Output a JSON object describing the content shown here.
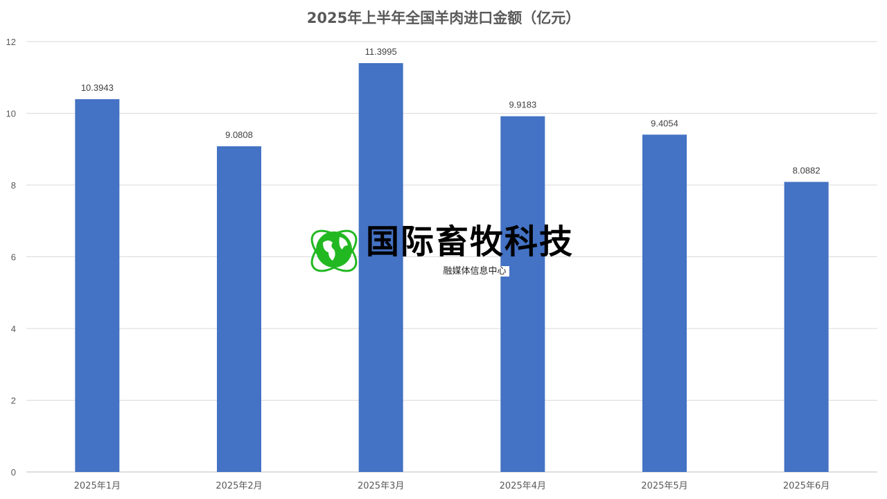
{
  "chart_data": {
    "type": "bar",
    "title": "2025年上半年全国羊肉进口金额（亿元）",
    "categories": [
      "2025年1月",
      "2025年2月",
      "2025年3月",
      "2025年4月",
      "2025年5月",
      "2025年6月"
    ],
    "values": [
      10.3943,
      9.0808,
      11.3995,
      9.9183,
      9.4054,
      8.0882
    ],
    "data_labels": [
      "10.3943",
      "9.0808",
      "11.3995",
      "9.9183",
      "9.4054",
      "8.0882"
    ],
    "ylim": [
      0,
      12
    ],
    "yticks": [
      "0",
      "2",
      "4",
      "6",
      "8",
      "10",
      "12"
    ],
    "grid": true,
    "bar_color": "#4472C4"
  },
  "watermark": {
    "title": "国际畜牧科技",
    "subtitle": "融媒体信息中心",
    "globe_color": "#22B822"
  }
}
